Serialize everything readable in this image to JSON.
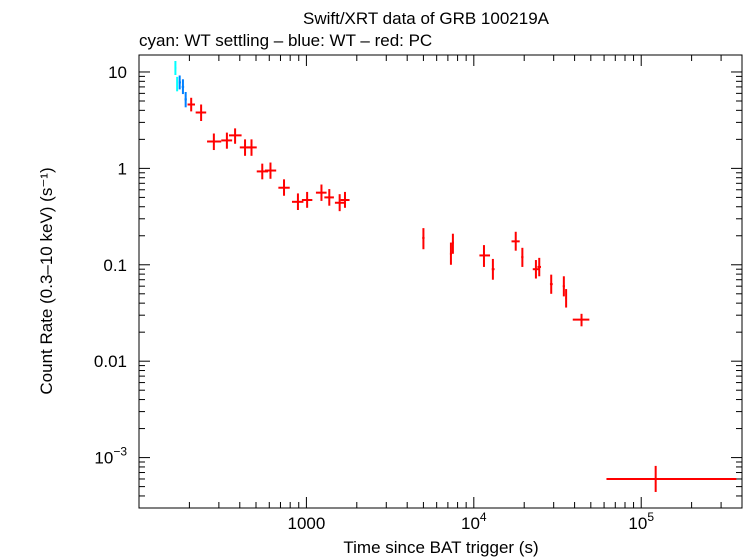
{
  "chart_data": {
    "type": "scatter",
    "title": "Swift/XRT data of GRB 100219A",
    "subtitle": "cyan: WT settling – blue: WT – red: PC",
    "xlabel": "Time since BAT trigger (s)",
    "ylabel": "Count Rate (0.3–10 keV) (s⁻¹)",
    "xscale": "log",
    "yscale": "log",
    "xlim": [
      100,
      400000
    ],
    "ylim": [
      0.0003,
      15
    ],
    "x_ticks": [
      {
        "value": 1000,
        "base": "1000",
        "exp": ""
      },
      {
        "value": 10000,
        "base": "10",
        "exp": "4"
      },
      {
        "value": 100000,
        "base": "10",
        "exp": "5"
      }
    ],
    "y_ticks": [
      {
        "value": 10,
        "base": "10",
        "exp": ""
      },
      {
        "value": 1,
        "base": "1",
        "exp": ""
      },
      {
        "value": 0.1,
        "base": "0.1",
        "exp": ""
      },
      {
        "value": 0.01,
        "base": "0.01",
        "exp": ""
      },
      {
        "value": 0.001,
        "base": "10",
        "exp": "−3"
      }
    ],
    "series": [
      {
        "name": "WT settling",
        "color": "#00ffff",
        "points": [
          {
            "x": 165,
            "x_lo": 164,
            "x_hi": 167,
            "y": 11,
            "y_lo": 9.3,
            "y_hi": 13
          },
          {
            "x": 169,
            "x_lo": 167.5,
            "x_hi": 170.5,
            "y": 7.5,
            "y_lo": 6.3,
            "y_hi": 8.9
          }
        ]
      },
      {
        "name": "WT",
        "color": "#0080ff",
        "points": [
          {
            "x": 175,
            "x_lo": 173,
            "x_hi": 178,
            "y": 7.8,
            "y_lo": 6.6,
            "y_hi": 9.2
          },
          {
            "x": 183,
            "x_lo": 180,
            "x_hi": 186,
            "y": 7.0,
            "y_lo": 5.9,
            "y_hi": 8.4
          },
          {
            "x": 190,
            "x_lo": 187,
            "x_hi": 193,
            "y": 5.2,
            "y_lo": 4.3,
            "y_hi": 6.2
          }
        ]
      },
      {
        "name": "PC",
        "color": "#ff0000",
        "points": [
          {
            "x": 205,
            "x_lo": 195,
            "x_hi": 216,
            "y": 4.6,
            "y_lo": 3.9,
            "y_hi": 5.4
          },
          {
            "x": 235,
            "x_lo": 218,
            "x_hi": 252,
            "y": 3.8,
            "y_lo": 3.1,
            "y_hi": 4.6
          },
          {
            "x": 280,
            "x_lo": 255,
            "x_hi": 310,
            "y": 1.9,
            "y_lo": 1.55,
            "y_hi": 2.3
          },
          {
            "x": 335,
            "x_lo": 310,
            "x_hi": 360,
            "y": 1.95,
            "y_lo": 1.6,
            "y_hi": 2.35
          },
          {
            "x": 375,
            "x_lo": 345,
            "x_hi": 410,
            "y": 2.2,
            "y_lo": 1.8,
            "y_hi": 2.6
          },
          {
            "x": 430,
            "x_lo": 400,
            "x_hi": 465,
            "y": 1.65,
            "y_lo": 1.35,
            "y_hi": 2.0
          },
          {
            "x": 470,
            "x_lo": 440,
            "x_hi": 505,
            "y": 1.65,
            "y_lo": 1.35,
            "y_hi": 2.0
          },
          {
            "x": 545,
            "x_lo": 505,
            "x_hi": 590,
            "y": 0.93,
            "y_lo": 0.77,
            "y_hi": 1.12
          },
          {
            "x": 610,
            "x_lo": 565,
            "x_hi": 660,
            "y": 0.95,
            "y_lo": 0.78,
            "y_hi": 1.15
          },
          {
            "x": 735,
            "x_lo": 680,
            "x_hi": 795,
            "y": 0.63,
            "y_lo": 0.52,
            "y_hi": 0.77
          },
          {
            "x": 890,
            "x_lo": 820,
            "x_hi": 960,
            "y": 0.45,
            "y_lo": 0.37,
            "y_hi": 0.55
          },
          {
            "x": 1010,
            "x_lo": 940,
            "x_hi": 1085,
            "y": 0.47,
            "y_lo": 0.39,
            "y_hi": 0.57
          },
          {
            "x": 1230,
            "x_lo": 1140,
            "x_hi": 1320,
            "y": 0.56,
            "y_lo": 0.46,
            "y_hi": 0.68
          },
          {
            "x": 1370,
            "x_lo": 1280,
            "x_hi": 1460,
            "y": 0.5,
            "y_lo": 0.41,
            "y_hi": 0.61
          },
          {
            "x": 1580,
            "x_lo": 1480,
            "x_hi": 1680,
            "y": 0.44,
            "y_lo": 0.36,
            "y_hi": 0.54
          },
          {
            "x": 1700,
            "x_lo": 1600,
            "x_hi": 1810,
            "y": 0.47,
            "y_lo": 0.39,
            "y_hi": 0.57
          },
          {
            "x": 5000,
            "x_lo": 4920,
            "x_hi": 5080,
            "y": 0.19,
            "y_lo": 0.145,
            "y_hi": 0.24
          },
          {
            "x": 7300,
            "x_lo": 7200,
            "x_hi": 7400,
            "y": 0.13,
            "y_lo": 0.1,
            "y_hi": 0.17
          },
          {
            "x": 7500,
            "x_lo": 7400,
            "x_hi": 7600,
            "y": 0.17,
            "y_lo": 0.13,
            "y_hi": 0.21
          },
          {
            "x": 11500,
            "x_lo": 10800,
            "x_hi": 12500,
            "y": 0.125,
            "y_lo": 0.095,
            "y_hi": 0.16
          },
          {
            "x": 13000,
            "x_lo": 12800,
            "x_hi": 13300,
            "y": 0.09,
            "y_lo": 0.07,
            "y_hi": 0.115
          },
          {
            "x": 17800,
            "x_lo": 16800,
            "x_hi": 18800,
            "y": 0.175,
            "y_lo": 0.14,
            "y_hi": 0.22
          },
          {
            "x": 19500,
            "x_lo": 19200,
            "x_hi": 19800,
            "y": 0.12,
            "y_lo": 0.095,
            "y_hi": 0.15
          },
          {
            "x": 23500,
            "x_lo": 22500,
            "x_hi": 24600,
            "y": 0.09,
            "y_lo": 0.072,
            "y_hi": 0.112
          },
          {
            "x": 24600,
            "x_lo": 24000,
            "x_hi": 25200,
            "y": 0.095,
            "y_lo": 0.076,
            "y_hi": 0.118
          },
          {
            "x": 29000,
            "x_lo": 28500,
            "x_hi": 29600,
            "y": 0.063,
            "y_lo": 0.05,
            "y_hi": 0.079
          },
          {
            "x": 34500,
            "x_lo": 34000,
            "x_hi": 35000,
            "y": 0.06,
            "y_lo": 0.047,
            "y_hi": 0.076
          },
          {
            "x": 35600,
            "x_lo": 35200,
            "x_hi": 36000,
            "y": 0.045,
            "y_lo": 0.036,
            "y_hi": 0.056
          },
          {
            "x": 44000,
            "x_lo": 39000,
            "x_hi": 49000,
            "y": 0.027,
            "y_lo": 0.023,
            "y_hi": 0.031
          },
          {
            "x": 122000,
            "x_lo": 62000,
            "x_hi": 370000,
            "y": 0.0006,
            "y_lo": 0.00044,
            "y_hi": 0.00082
          }
        ]
      }
    ]
  }
}
